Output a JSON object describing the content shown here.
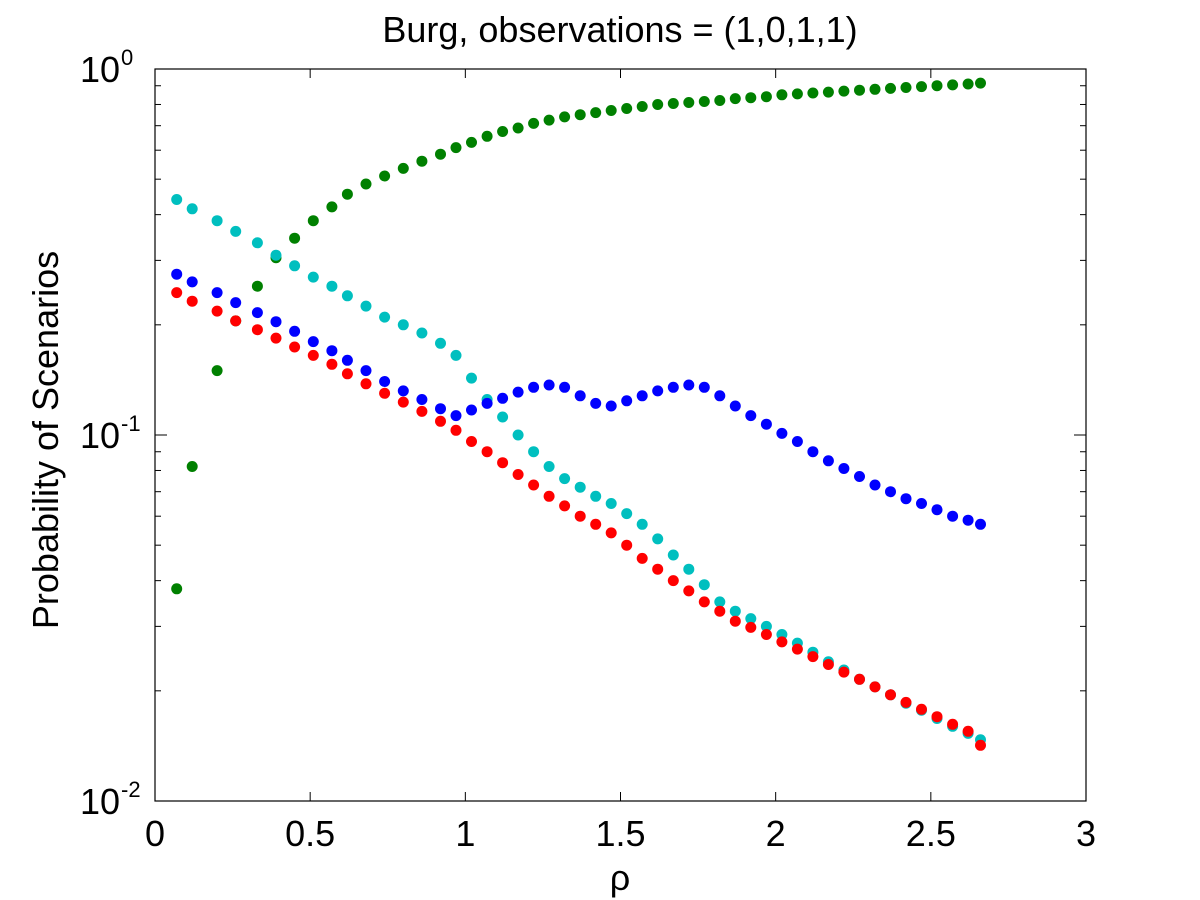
{
  "chart_data": {
    "type": "scatter",
    "title": "Burg, observations = (1,0,1,1)",
    "xlabel": "ρ",
    "ylabel": "Probability of Scenarios",
    "xlim": [
      0,
      3
    ],
    "ylim": [
      0.01,
      1
    ],
    "yscale": "log",
    "grid": false,
    "x_ticks": [
      "0",
      "0.5",
      "1",
      "1.5",
      "2",
      "2.5",
      "3"
    ],
    "y_ticks": [
      {
        "base": "10",
        "exp": "-2"
      },
      {
        "base": "10",
        "exp": "-1"
      },
      {
        "base": "10",
        "exp": "0"
      }
    ],
    "x": [
      0.07,
      0.12,
      0.2,
      0.26,
      0.33,
      0.39,
      0.45,
      0.51,
      0.57,
      0.62,
      0.68,
      0.74,
      0.8,
      0.86,
      0.92,
      0.97,
      1.02,
      1.07,
      1.12,
      1.17,
      1.22,
      1.27,
      1.32,
      1.37,
      1.42,
      1.47,
      1.52,
      1.57,
      1.62,
      1.67,
      1.72,
      1.77,
      1.82,
      1.87,
      1.92,
      1.97,
      2.02,
      2.07,
      2.12,
      2.17,
      2.22,
      2.27,
      2.32,
      2.37,
      2.42,
      2.47,
      2.52,
      2.57,
      2.62,
      2.66
    ],
    "series": [
      {
        "color": "#008000",
        "values": [
          0.038,
          0.082,
          0.15,
          0.205,
          0.255,
          0.305,
          0.345,
          0.385,
          0.42,
          0.455,
          0.485,
          0.51,
          0.535,
          0.56,
          0.585,
          0.61,
          0.63,
          0.655,
          0.675,
          0.69,
          0.71,
          0.725,
          0.74,
          0.75,
          0.76,
          0.77,
          0.78,
          0.79,
          0.8,
          0.805,
          0.81,
          0.815,
          0.82,
          0.83,
          0.835,
          0.84,
          0.85,
          0.855,
          0.86,
          0.865,
          0.87,
          0.875,
          0.88,
          0.885,
          0.89,
          0.895,
          0.9,
          0.905,
          0.91,
          0.915
        ]
      },
      {
        "color": "#00bfbf",
        "values": [
          0.44,
          0.415,
          0.385,
          0.36,
          0.335,
          0.31,
          0.29,
          0.27,
          0.255,
          0.24,
          0.225,
          0.21,
          0.2,
          0.19,
          0.178,
          0.165,
          0.143,
          0.125,
          0.112,
          0.1,
          0.09,
          0.082,
          0.076,
          0.072,
          0.068,
          0.065,
          0.061,
          0.057,
          0.052,
          0.047,
          0.043,
          0.039,
          0.035,
          0.033,
          0.0315,
          0.03,
          0.0285,
          0.027,
          0.0255,
          0.024,
          0.0228,
          0.0215,
          0.0205,
          0.0195,
          0.0185,
          0.0177,
          0.0168,
          0.016,
          0.0153,
          0.0147
        ]
      },
      {
        "color": "#0000ff",
        "values": [
          0.275,
          0.262,
          0.245,
          0.23,
          0.216,
          0.204,
          0.192,
          0.18,
          0.17,
          0.16,
          0.15,
          0.14,
          0.132,
          0.125,
          0.118,
          0.113,
          0.117,
          0.122,
          0.126,
          0.131,
          0.135,
          0.137,
          0.135,
          0.128,
          0.122,
          0.12,
          0.124,
          0.128,
          0.132,
          0.135,
          0.137,
          0.135,
          0.128,
          0.12,
          0.113,
          0.107,
          0.101,
          0.096,
          0.09,
          0.085,
          0.081,
          0.077,
          0.073,
          0.07,
          0.067,
          0.065,
          0.0625,
          0.06,
          0.0585,
          0.057
        ]
      },
      {
        "color": "#ff0000",
        "values": [
          0.245,
          0.232,
          0.218,
          0.205,
          0.194,
          0.184,
          0.174,
          0.165,
          0.156,
          0.147,
          0.138,
          0.13,
          0.123,
          0.116,
          0.109,
          0.103,
          0.096,
          0.09,
          0.084,
          0.078,
          0.073,
          0.068,
          0.064,
          0.06,
          0.057,
          0.054,
          0.05,
          0.046,
          0.043,
          0.04,
          0.0375,
          0.035,
          0.033,
          0.031,
          0.0298,
          0.0285,
          0.0272,
          0.026,
          0.0248,
          0.0236,
          0.0225,
          0.0215,
          0.0205,
          0.0195,
          0.0186,
          0.0178,
          0.017,
          0.0162,
          0.0155,
          0.0142
        ]
      }
    ]
  }
}
